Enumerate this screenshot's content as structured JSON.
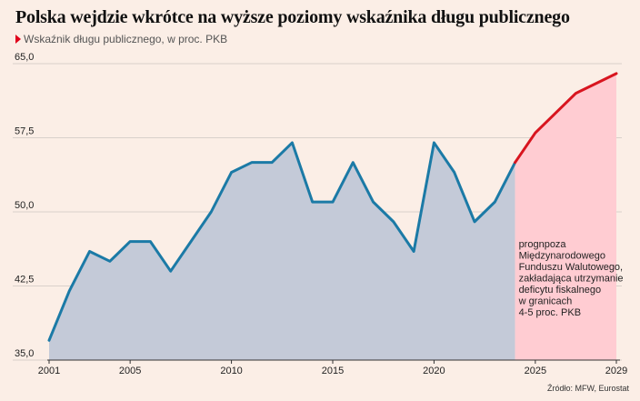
{
  "header": {
    "title": "Polska wejdzie wkrótce na wyższe poziomy wskaźnika długu publicznego",
    "subtitle": "Wskaźnik długu publicznego, w proc. PKB"
  },
  "footer": {
    "source": "Źródło: MFW, Eurostat"
  },
  "colors": {
    "historical_line": "#1b7aa6",
    "historical_fill": "#c4cad8",
    "forecast_line": "#d8151f",
    "forecast_fill": "#ffccd2",
    "gridline": "#d9d0cb",
    "marker": "#e0001b"
  },
  "chart_data": {
    "type": "area",
    "title": "Polska wejdzie wkrótce na wyższe poziomy wskaźnika długu publicznego",
    "subtitle": "Wskaźnik długu publicznego, w proc. PKB",
    "xlim": [
      2001,
      2029
    ],
    "ylim": [
      35,
      65
    ],
    "x_ticks": [
      "2001",
      "2005",
      "2010",
      "2015",
      "2020",
      "2025",
      "2029"
    ],
    "y_ticks": [
      "35,0",
      "42,5",
      "50,0",
      "57,5",
      "65,0"
    ],
    "grid": true,
    "series": [
      {
        "kind": "historical",
        "x": [
          2001,
          2002,
          2003,
          2004,
          2005,
          2006,
          2007,
          2008,
          2009,
          2010,
          2011,
          2012,
          2013,
          2014,
          2015,
          2016,
          2017,
          2018,
          2019,
          2020,
          2021,
          2022,
          2023,
          2024
        ],
        "values": [
          37,
          42,
          46,
          45,
          47,
          47,
          44,
          47,
          50,
          54,
          55,
          55,
          57,
          51,
          51,
          55,
          51,
          49,
          46,
          57,
          54,
          49,
          51,
          55
        ]
      },
      {
        "kind": "forecast",
        "x": [
          2024,
          2025,
          2026,
          2027,
          2028,
          2029
        ],
        "values": [
          55,
          58,
          60,
          62,
          63,
          64
        ]
      }
    ],
    "annotation": {
      "lines": [
        "prognpoza",
        "Międzynarodowego",
        "Funduszu Walutowego,",
        "zakładająca utrzymanie",
        "deficytu fiskalnego",
        "w granicach",
        "4-5 proc. PKB"
      ]
    }
  }
}
